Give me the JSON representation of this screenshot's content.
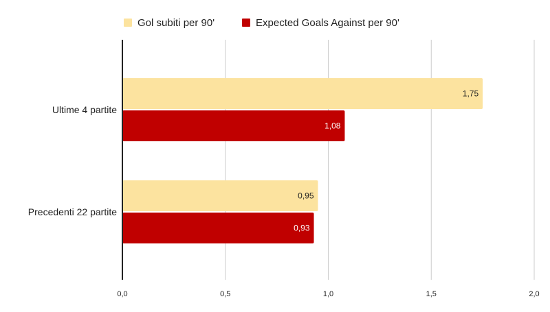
{
  "chart_data": {
    "type": "bar",
    "orientation": "horizontal",
    "title": "",
    "xlabel": "",
    "ylabel": "",
    "categories": [
      "Ultime 4 partite",
      "Precedenti 22 partite"
    ],
    "series": [
      {
        "name": "Gol subiti per 90'",
        "values": [
          1.75,
          0.95
        ],
        "labels": [
          "1,75",
          "0,95"
        ],
        "color": "#fce39f",
        "label_color": "#222222"
      },
      {
        "name": "Expected Goals Against per 90'",
        "values": [
          1.08,
          0.93
        ],
        "labels": [
          "1,08",
          "0,93"
        ],
        "color": "#c00000",
        "label_color": "#ffffff"
      }
    ],
    "xlim": [
      0,
      2
    ],
    "ticks": [
      0,
      0.5,
      1,
      1.5,
      2
    ],
    "tick_labels": [
      "0,0",
      "0,5",
      "1,0",
      "1,5",
      "2,0"
    ],
    "grid": true,
    "legend_position": "top-center"
  }
}
